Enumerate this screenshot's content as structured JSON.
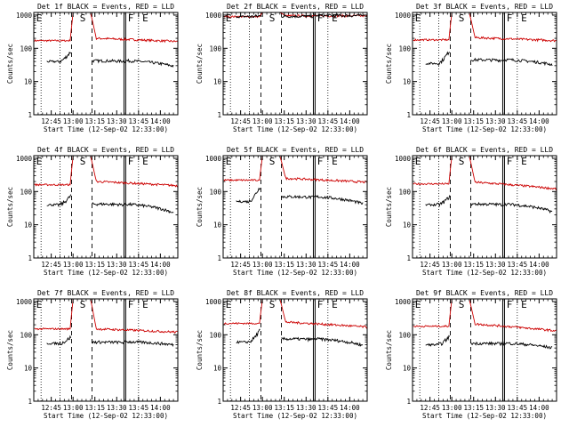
{
  "figure": {
    "panel_titles": [
      "Det 1f BLACK = Events, RED = LLD",
      "Det 2f BLACK = Events, RED = LLD",
      "Det 3f BLACK = Events, RED = LLD",
      "Det 4f BLACK = Events, RED = LLD",
      "Det 5f BLACK = Events, RED = LLD",
      "Det 6f BLACK = Events, RED = LLD",
      "Det 7f BLACK = Events, RED = LLD",
      "Det 8f BLACK = Events, RED = LLD",
      "Det 9f BLACK = Events, RED = LLD"
    ],
    "colors": {
      "events": "#000000",
      "lld": "#cc0000",
      "axes": "#000000"
    }
  },
  "chart_data": {
    "type": "line",
    "scale": "log",
    "xlabel": "Start Time (12-Sep-02 12:33:00)",
    "ylabel": "Counts/sec",
    "x_tick_labels": [
      "12:45",
      "13:00",
      "13:15",
      "13:30",
      "13:45",
      "14:00"
    ],
    "x_tick_minutes": [
      12,
      27,
      42,
      57,
      72,
      87
    ],
    "xlim_minutes": [
      0,
      99
    ],
    "y_tick_labels": [
      "1",
      "10",
      "100",
      "1000"
    ],
    "ylim": [
      1,
      1200
    ],
    "markers": [
      {
        "label": "E",
        "minute": 0
      },
      {
        "label": "S",
        "minute": 30
      },
      {
        "label": "F",
        "minute": 63
      },
      {
        "label": "E",
        "minute": 73
      }
    ],
    "vlines": {
      "dotted_minutes": [
        5,
        18,
        72
      ],
      "dashed_minutes": [
        26,
        40
      ],
      "solid_minutes": [
        62,
        63.2
      ]
    },
    "panels": [
      {
        "detector": "Det 1f",
        "lld": {
          "pre": 170,
          "peak": 1200,
          "post": 200,
          "end": 160
        },
        "events": {
          "pre": 40,
          "spike": 85,
          "post": 42,
          "end": 25
        }
      },
      {
        "detector": "Det 2f",
        "lld": {
          "pre": 900,
          "peak": 1200,
          "post": 950,
          "end": 950
        },
        "events": {
          "pre": 900,
          "spike": 950,
          "post": 920,
          "end": 920
        }
      },
      {
        "detector": "Det 3f",
        "lld": {
          "pre": 180,
          "peak": 1200,
          "post": 210,
          "end": 170
        },
        "events": {
          "pre": 35,
          "spike": 90,
          "post": 45,
          "end": 28
        }
      },
      {
        "detector": "Det 4f",
        "lld": {
          "pre": 160,
          "peak": 1200,
          "post": 200,
          "end": 150
        },
        "events": {
          "pre": 40,
          "spike": 80,
          "post": 42,
          "end": 18
        }
      },
      {
        "detector": "Det 5f",
        "lld": {
          "pre": 220,
          "peak": 1200,
          "post": 250,
          "end": 190
        },
        "events": {
          "pre": 50,
          "spike": 150,
          "post": 70,
          "end": 35
        }
      },
      {
        "detector": "Det 6f",
        "lld": {
          "pre": 170,
          "peak": 1200,
          "post": 190,
          "end": 120
        },
        "events": {
          "pre": 40,
          "spike": 75,
          "post": 42,
          "end": 20
        }
      },
      {
        "detector": "Det 7f",
        "lld": {
          "pre": 150,
          "peak": 1200,
          "post": 150,
          "end": 120
        },
        "events": {
          "pre": 55,
          "spike": 90,
          "post": 60,
          "end": 45
        }
      },
      {
        "detector": "Det 8f",
        "lld": {
          "pre": 220,
          "peak": 1200,
          "post": 240,
          "end": 170
        },
        "events": {
          "pre": 60,
          "spike": 150,
          "post": 75,
          "end": 40
        }
      },
      {
        "detector": "Det 9f",
        "lld": {
          "pre": 180,
          "peak": 1200,
          "post": 210,
          "end": 130
        },
        "events": {
          "pre": 50,
          "spike": 95,
          "post": 55,
          "end": 35
        }
      }
    ]
  }
}
